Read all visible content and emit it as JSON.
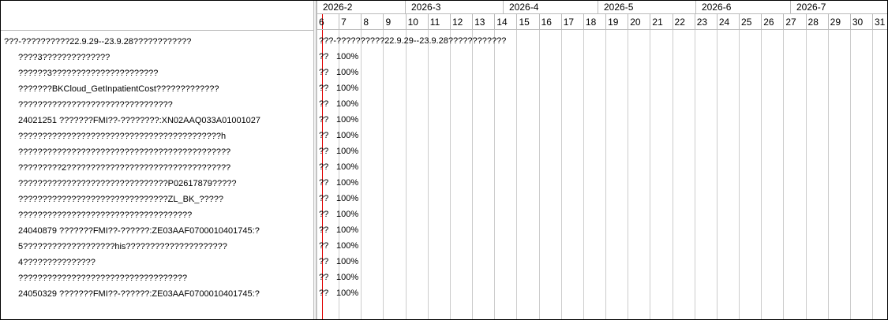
{
  "tasks": [
    {
      "name": "???-??????????22.9.29--23.9.28????????????",
      "indent": false,
      "bar": "???-??????????22.9.29--23.9.28????????????",
      "progress": ""
    },
    {
      "name": "????3??????????????",
      "indent": true,
      "bar": "??",
      "progress": "100%"
    },
    {
      "name": "??????3??????????????????????",
      "indent": true,
      "bar": "??",
      "progress": "100%"
    },
    {
      "name": "???????BKCloud_GetInpatientCost?????????????",
      "indent": true,
      "bar": "??",
      "progress": "100%"
    },
    {
      "name": "????????????????????????????????",
      "indent": true,
      "bar": "??",
      "progress": "100%"
    },
    {
      "name": "24021251 ???????FMI??-????????:XN02AAQ033A01001027",
      "indent": true,
      "bar": "??",
      "progress": "100%"
    },
    {
      "name": "??????????????????????????????????????????h",
      "indent": true,
      "bar": "??",
      "progress": "100%"
    },
    {
      "name": "????????????????????????????????????????????",
      "indent": true,
      "bar": "??",
      "progress": "100%"
    },
    {
      "name": "?????????2??????????????????????????????????",
      "indent": true,
      "bar": "??",
      "progress": "100%"
    },
    {
      "name": "???????????????????????????????P02617879?????",
      "indent": true,
      "bar": "??",
      "progress": "100%"
    },
    {
      "name": "???????????????????????????????ZL_BK_?????",
      "indent": true,
      "bar": "??",
      "progress": "100%"
    },
    {
      "name": "????????????????????????????????????",
      "indent": true,
      "bar": "??",
      "progress": "100%"
    },
    {
      "name": "24040879 ???????FMI??-??????:ZE03AAF0700010401745:?",
      "indent": true,
      "bar": "??",
      "progress": "100%"
    },
    {
      "name": "5???????????????????his?????????????????????",
      "indent": true,
      "bar": "??",
      "progress": "100%"
    },
    {
      "name": "4???????????????",
      "indent": true,
      "bar": "??",
      "progress": "100%"
    },
    {
      "name": "???????????????????????????????????",
      "indent": true,
      "bar": "??",
      "progress": "100%"
    },
    {
      "name": "24050329 ???????FMI??-??????:ZE03AAF0700010401745:?",
      "indent": true,
      "bar": "??",
      "progress": "100%"
    }
  ],
  "months": [
    "2026-2",
    "2026-3",
    "2026-4",
    "2026-5",
    "2026-6",
    "2026-7"
  ],
  "weeks": [
    "6",
    "7",
    "8",
    "9",
    "10",
    "11",
    "12",
    "13",
    "14",
    "15",
    "16",
    "17",
    "18",
    "19",
    "20",
    "21",
    "22",
    "23",
    "24",
    "25",
    "26",
    "27",
    "28",
    "29",
    "30",
    "31"
  ],
  "colors": {
    "today_line": "#e00000",
    "grid": "#cccccc"
  }
}
